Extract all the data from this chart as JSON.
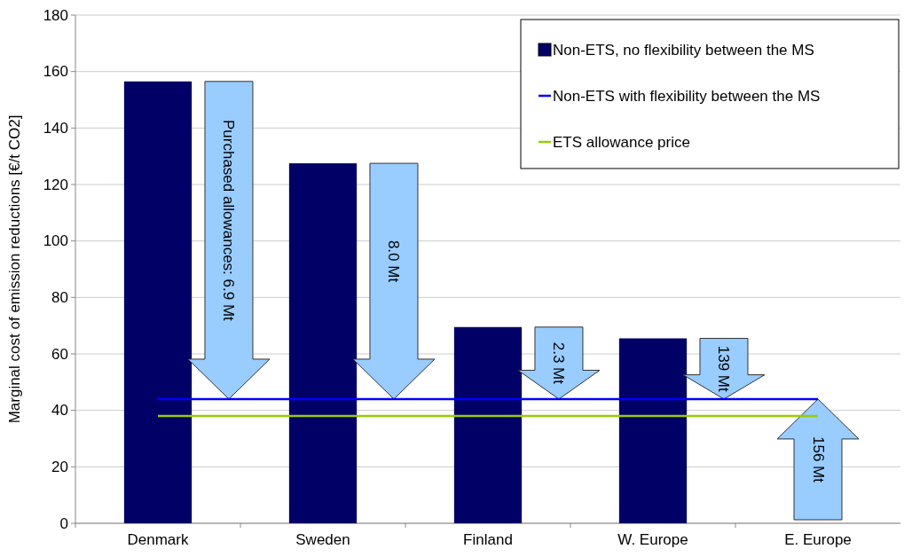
{
  "chart_data": {
    "type": "bar",
    "ylabel": "Marginal cost of emission reductions [€/t CO2]",
    "categories": [
      "Denmark",
      "Sweden",
      "Finland",
      "W. Europe",
      "E. Europe"
    ],
    "series": [
      {
        "name": "Non-ETS, no flexibility between the MS",
        "color": "#000066",
        "values": [
          156.5,
          127.5,
          69.5,
          65.5,
          null
        ]
      },
      {
        "name": "Non-ETS with flexibility between the MS",
        "type": "line",
        "color": "#0000ff",
        "values": [
          44,
          44,
          44,
          44,
          44
        ]
      },
      {
        "name": "ETS allowance price",
        "type": "line",
        "color": "#99cc00",
        "values": [
          38,
          38,
          38,
          38,
          38
        ]
      }
    ],
    "ylim": [
      0,
      180
    ],
    "yticks": [
      0,
      20,
      40,
      60,
      80,
      100,
      120,
      140,
      160,
      180
    ],
    "grid": "y",
    "legend": "top right",
    "marker": "none",
    "line_style": "solid",
    "annotations": [
      "Purchased allowances: 6.9 Mt",
      "8.0 Mt",
      "2.3 Mt",
      "139 Mt",
      "156 Mt"
    ]
  }
}
